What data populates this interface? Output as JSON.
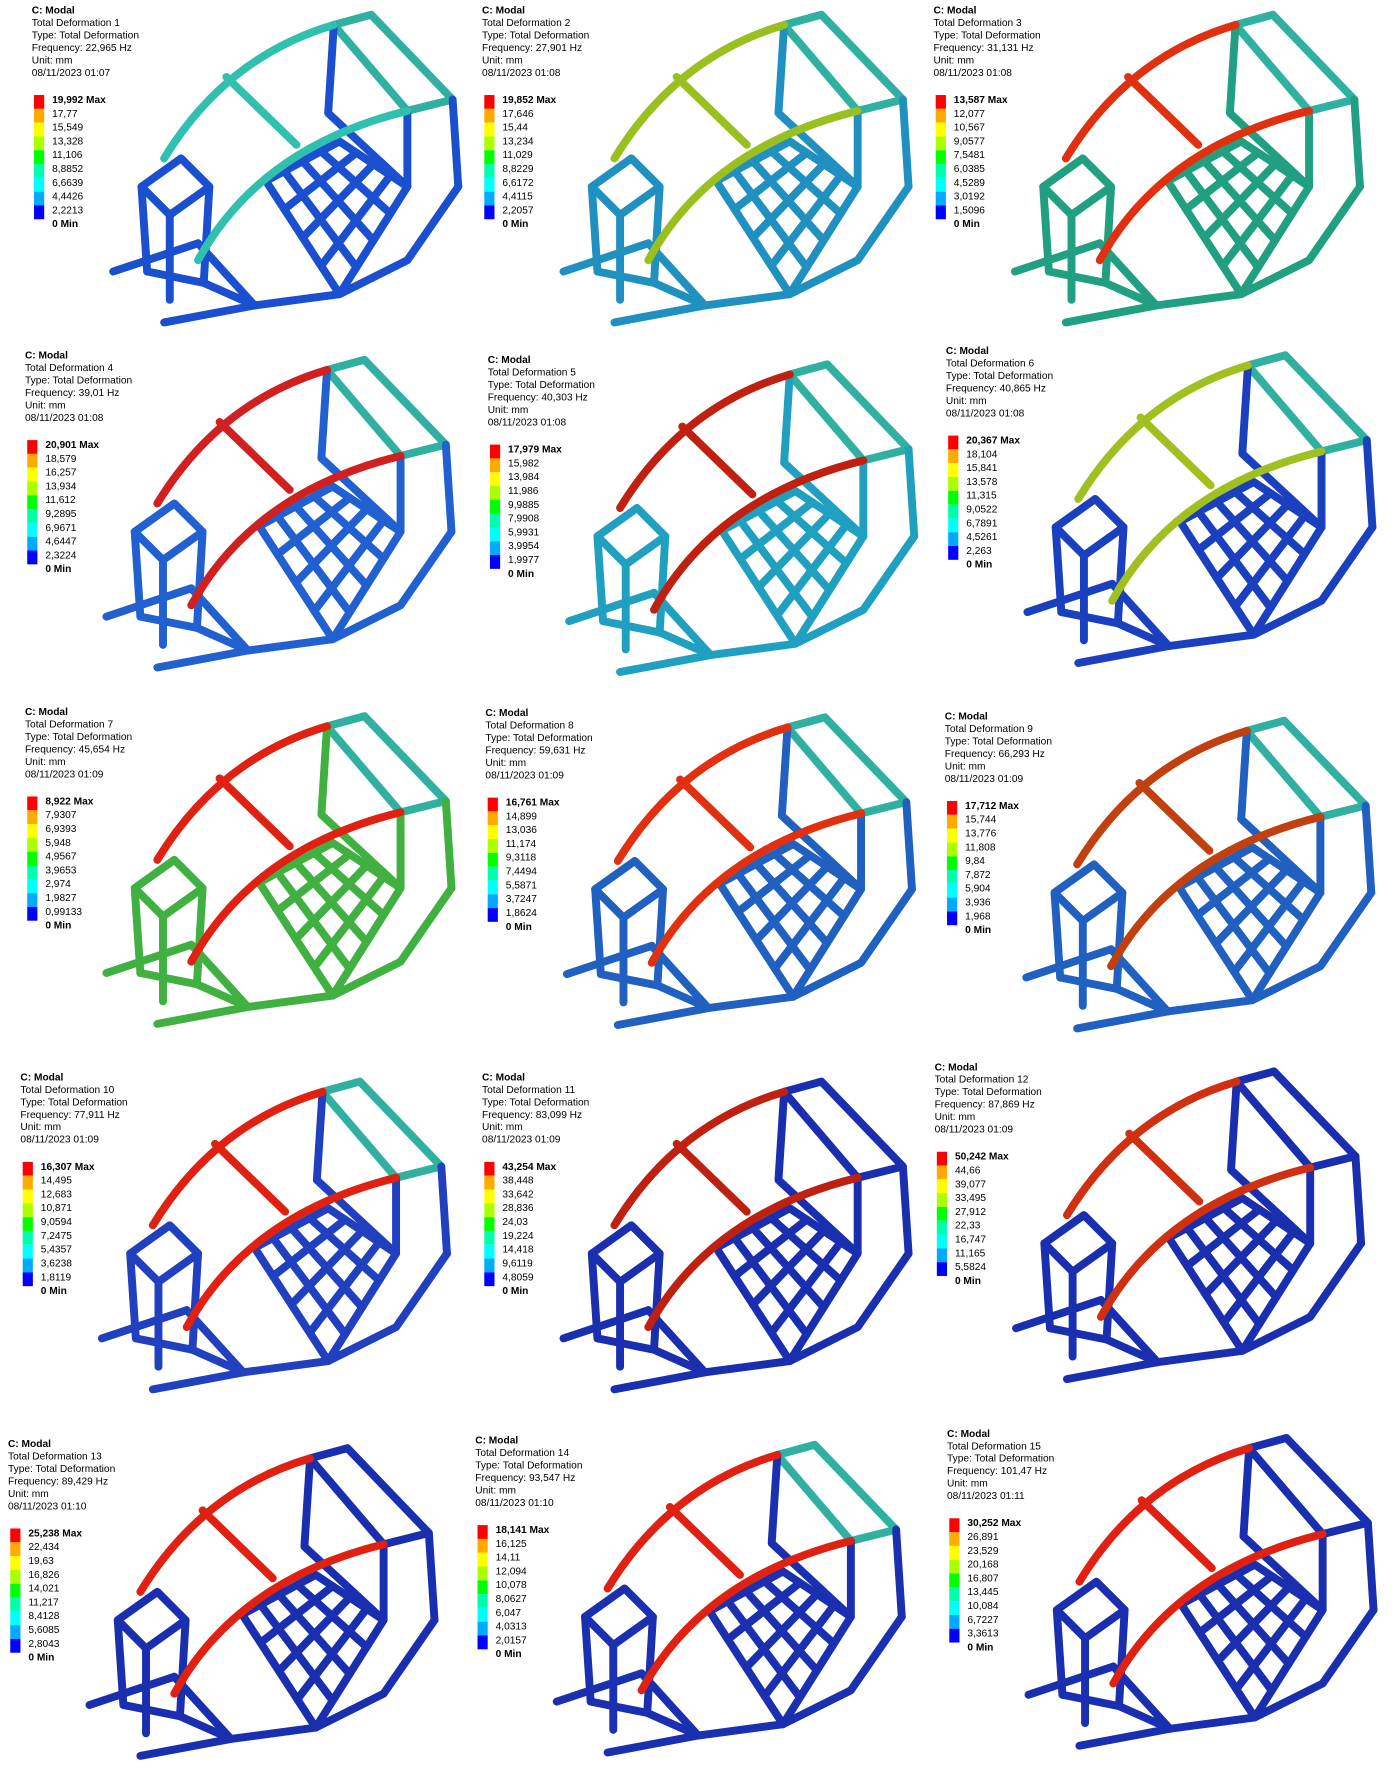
{
  "panels": [
    {
      "header": "C: Modal",
      "name": "Total Deformation 1",
      "type": "Type: Total Deformation",
      "frequency": "Frequency: 22,965 Hz",
      "unit": "Unit: mm",
      "date": "08/11/2023 01:07",
      "legend": [
        "19,992 Max",
        "17,77",
        "15,549",
        "13,328",
        "11,106",
        "8,8852",
        "6,6639",
        "4,4426",
        "2,2213",
        "0 Min"
      ]
    },
    {
      "header": "C: Modal",
      "name": "Total Deformation 2",
      "type": "Type: Total Deformation",
      "frequency": "Frequency: 27,901 Hz",
      "unit": "Unit: mm",
      "date": "08/11/2023 01:08",
      "legend": [
        "19,852 Max",
        "17,646",
        "15,44",
        "13,234",
        "11,029",
        "8,8229",
        "6,6172",
        "4,4115",
        "2,2057",
        "0 Min"
      ]
    },
    {
      "header": "C: Modal",
      "name": "Total Deformation 3",
      "type": "Type: Total Deformation",
      "frequency": "Frequency: 31,131 Hz",
      "unit": "Unit: mm",
      "date": "08/11/2023 01:08",
      "legend": [
        "13,587 Max",
        "12,077",
        "10,567",
        "9,0577",
        "7,5481",
        "6,0385",
        "4,5289",
        "3,0192",
        "1,5096",
        "0 Min"
      ]
    },
    {
      "header": "C: Modal",
      "name": "Total Deformation 4",
      "type": "Type: Total Deformation",
      "frequency": "Frequency: 39,01 Hz",
      "unit": "Unit: mm",
      "date": "08/11/2023 01:08",
      "legend": [
        "20,901 Max",
        "18,579",
        "16,257",
        "13,934",
        "11,612",
        "9,2895",
        "6,9671",
        "4,6447",
        "2,3224",
        "0 Min"
      ]
    },
    {
      "header": "C: Modal",
      "name": "Total Deformation 5",
      "type": "Type: Total Deformation",
      "frequency": "Frequency: 40,303 Hz",
      "unit": "Unit: mm",
      "date": "08/11/2023 01:08",
      "legend": [
        "17,979 Max",
        "15,982",
        "13,984",
        "11,986",
        "9,9885",
        "7,9908",
        "5,9931",
        "3,9954",
        "1,9977",
        "0 Min"
      ]
    },
    {
      "header": "C: Modal",
      "name": "Total Deformation 6",
      "type": "Type: Total Deformation",
      "frequency": "Frequency: 40,865 Hz",
      "unit": "Unit: mm",
      "date": "08/11/2023 01:08",
      "legend": [
        "20,367 Max",
        "18,104",
        "15,841",
        "13,578",
        "11,315",
        "9,0522",
        "6,7891",
        "4,5261",
        "2,263",
        "0 Min"
      ]
    },
    {
      "header": "C: Modal",
      "name": "Total Deformation 7",
      "type": "Type: Total Deformation",
      "frequency": "Frequency: 45,654 Hz",
      "unit": "Unit: mm",
      "date": "08/11/2023 01:09",
      "legend": [
        "8,922 Max",
        "7,9307",
        "6,9393",
        "5,948",
        "4,9567",
        "3,9653",
        "2,974",
        "1,9827",
        "0,99133",
        "0 Min"
      ]
    },
    {
      "header": "C: Modal",
      "name": "Total Deformation 8",
      "type": "Type: Total Deformation",
      "frequency": "Frequency: 59,631 Hz",
      "unit": "Unit: mm",
      "date": "08/11/2023 01:09",
      "legend": [
        "16,761 Max",
        "14,899",
        "13,036",
        "11,174",
        "9,3118",
        "7,4494",
        "5,5871",
        "3,7247",
        "1,8624",
        "0 Min"
      ]
    },
    {
      "header": "C: Modal",
      "name": "Total Deformation 9",
      "type": "Type: Total Deformation",
      "frequency": "Frequency: 66,293 Hz",
      "unit": "Unit: mm",
      "date": "08/11/2023 01:09",
      "legend": [
        "17,712 Max",
        "15,744",
        "13,776",
        "11,808",
        "9,84",
        "7,872",
        "5,904",
        "3,936",
        "1,968",
        "0 Min"
      ]
    },
    {
      "header": "C: Modal",
      "name": "Total Deformation 10",
      "type": "Type: Total Deformation",
      "frequency": "Frequency: 77,911 Hz",
      "unit": "Unit: mm",
      "date": "08/11/2023 01:09",
      "legend": [
        "16,307 Max",
        "14,495",
        "12,683",
        "10,871",
        "9,0594",
        "7,2475",
        "5,4357",
        "3,6238",
        "1,8119",
        "0 Min"
      ]
    },
    {
      "header": "C: Modal",
      "name": "Total Deformation 11",
      "type": "Type: Total Deformation",
      "frequency": "Frequency: 83,099 Hz",
      "unit": "Unit: mm",
      "date": "08/11/2023 01:09",
      "legend": [
        "43,254 Max",
        "38,448",
        "33,642",
        "28,836",
        "24,03",
        "19,224",
        "14,418",
        "9,6119",
        "4,8059",
        "0 Min"
      ]
    },
    {
      "header": "C: Modal",
      "name": "Total Deformation 12",
      "type": "Type: Total Deformation",
      "frequency": "Frequency: 87,869 Hz",
      "unit": "Unit: mm",
      "date": "08/11/2023 01:09",
      "legend": [
        "50,242 Max",
        "44,66",
        "39,077",
        "33,495",
        "27,912",
        "22,33",
        "16,747",
        "11,165",
        "5,5824",
        "0 Min"
      ]
    },
    {
      "header": "C: Modal",
      "name": "Total Deformation 13",
      "type": "Type: Total Deformation",
      "frequency": "Frequency: 89,429 Hz",
      "unit": "Unit: mm",
      "date": "08/11/2023 01:10",
      "legend": [
        "25,238 Max",
        "22,434",
        "19,63",
        "16,826",
        "14,021",
        "11,217",
        "8,4128",
        "5,6085",
        "2,8043",
        "0 Min"
      ]
    },
    {
      "header": "C: Modal",
      "name": "Total Deformation 14",
      "type": "Type: Total Deformation",
      "frequency": "Frequency: 93,547 Hz",
      "unit": "Unit: mm",
      "date": "08/11/2023 01:10",
      "legend": [
        "18,141 Max",
        "16,125",
        "14,11",
        "12,094",
        "10,078",
        "8,0627",
        "6,047",
        "4,0313",
        "2,0157",
        "0 Min"
      ]
    },
    {
      "header": "C: Modal",
      "name": "Total Deformation 15",
      "type": "Type: Total Deformation",
      "frequency": "Frequency: 101,47 Hz",
      "unit": "Unit: mm",
      "date": "08/11/2023 01:11",
      "legend": [
        "30,252 Max",
        "26,891",
        "23,529",
        "20,168",
        "16,807",
        "13,445",
        "10,084",
        "6,7227",
        "3,3613",
        "0 Min"
      ]
    }
  ]
}
